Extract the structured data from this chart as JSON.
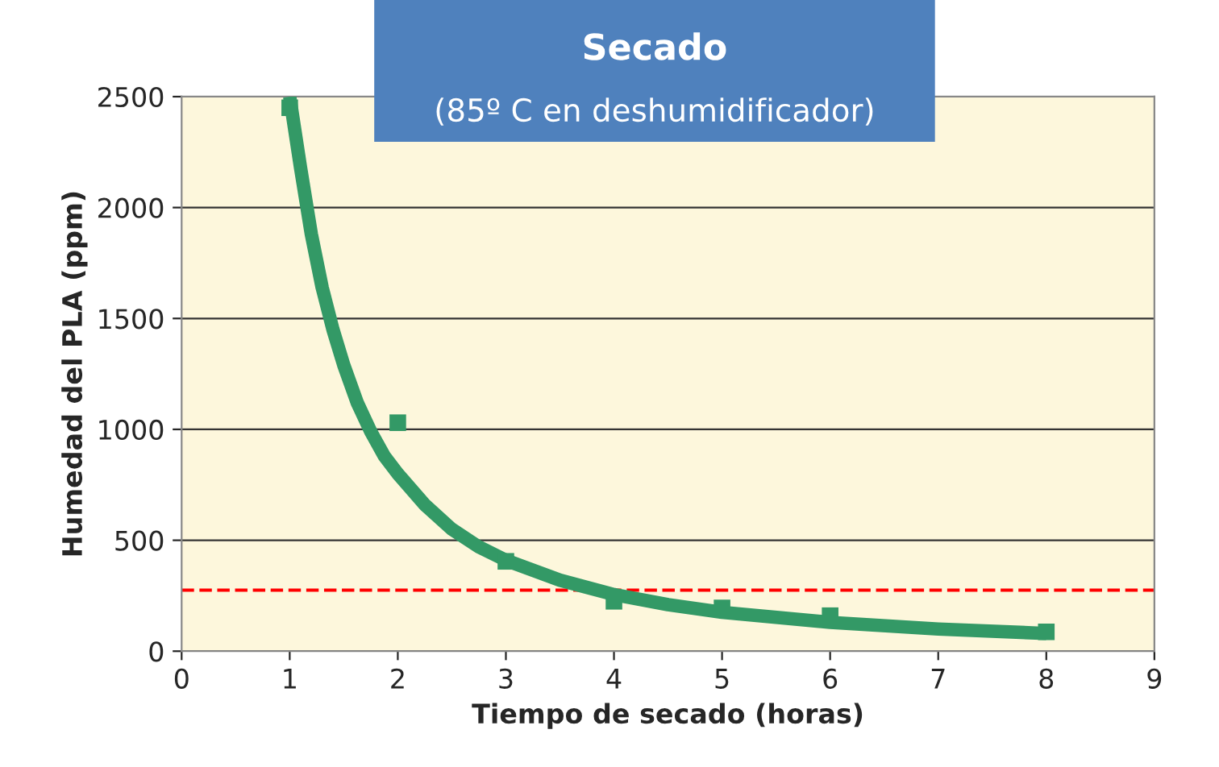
{
  "chart_data": {
    "type": "scatter",
    "title": "Secado",
    "subtitle": "(85º C en deshumidificador)",
    "xlabel": "Tiempo de secado (horas)",
    "ylabel": "Humedad del PLA (ppm)",
    "xlim": [
      0,
      9
    ],
    "xticks": [
      0,
      1,
      2,
      3,
      4,
      5,
      6,
      7,
      8,
      9
    ],
    "ylim": [
      0,
      2500
    ],
    "yticks": [
      0,
      500,
      1000,
      1500,
      2000,
      2500
    ],
    "grid": "y",
    "legend": false,
    "marker": "square",
    "series": [
      {
        "color": "#339966",
        "x": [
          1,
          2,
          3,
          4,
          5,
          6,
          8
        ],
        "values": [
          2450,
          1030,
          405,
          225,
          195,
          160,
          87
        ]
      },
      {
        "type": "line",
        "color": "#339966",
        "line_style": "solid",
        "marker": "none",
        "x": [
          1,
          1.1,
          1.2,
          1.3,
          1.4,
          1.5,
          1.625,
          1.75,
          1.875,
          2,
          2.25,
          2.5,
          2.75,
          3,
          3.5,
          4,
          4.5,
          5,
          6,
          7,
          8
        ],
        "values": [
          2500,
          2180,
          1880,
          1640,
          1450,
          1290,
          1120,
          990,
          880,
          800,
          660,
          550,
          470,
          410,
          320,
          255,
          210,
          175,
          130,
          100,
          80
        ]
      }
    ],
    "ref_lines": [
      {
        "axis": "y",
        "value": 275,
        "color": "#ff0000",
        "line_style": "dashed"
      }
    ]
  }
}
